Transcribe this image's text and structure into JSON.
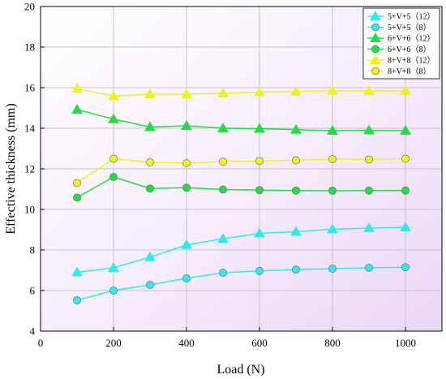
{
  "chart_data": {
    "type": "line",
    "title": "",
    "xlabel": "Load (N)",
    "ylabel": "Effective thickness (mm)",
    "xlim": [
      0,
      1100
    ],
    "ylim": [
      4,
      20
    ],
    "xticks": [
      0,
      200,
      400,
      600,
      800,
      1000
    ],
    "yticks": [
      4,
      6,
      8,
      10,
      12,
      14,
      16,
      18,
      20
    ],
    "grid": true,
    "legend": "top-right",
    "x": [
      100,
      200,
      300,
      400,
      500,
      600,
      700,
      800,
      900,
      1000
    ],
    "series": [
      {
        "name": "5+V+5（12）",
        "marker": "triangle",
        "color": "#33e8f0",
        "values": [
          6.9,
          7.12,
          7.65,
          8.25,
          8.55,
          8.82,
          8.9,
          9.02,
          9.08,
          9.12
        ]
      },
      {
        "name": "5+V+5（8）",
        "marker": "circle",
        "color": "#33e8f0",
        "values": [
          5.52,
          6.0,
          6.28,
          6.6,
          6.88,
          6.97,
          7.03,
          7.08,
          7.12,
          7.15
        ]
      },
      {
        "name": "6+V+6（12）",
        "marker": "triangle",
        "color": "#22dd44",
        "values": [
          14.92,
          14.45,
          14.06,
          14.12,
          14.0,
          13.98,
          13.93,
          13.88,
          13.9,
          13.88
        ]
      },
      {
        "name": "6+V+6（8）",
        "marker": "circle",
        "color": "#22dd44",
        "values": [
          10.58,
          11.6,
          11.03,
          11.07,
          10.98,
          10.95,
          10.93,
          10.92,
          10.93,
          10.93
        ]
      },
      {
        "name": "8+V+8（12）",
        "marker": "triangle",
        "color": "#f0f022",
        "values": [
          15.95,
          15.58,
          15.68,
          15.68,
          15.72,
          15.78,
          15.8,
          15.85,
          15.83,
          15.85
        ]
      },
      {
        "name": "8+V+8（8）",
        "marker": "circle",
        "color": "#f0f022",
        "values": [
          11.3,
          12.5,
          12.32,
          12.28,
          12.35,
          12.38,
          12.42,
          12.48,
          12.46,
          12.5
        ]
      }
    ]
  }
}
